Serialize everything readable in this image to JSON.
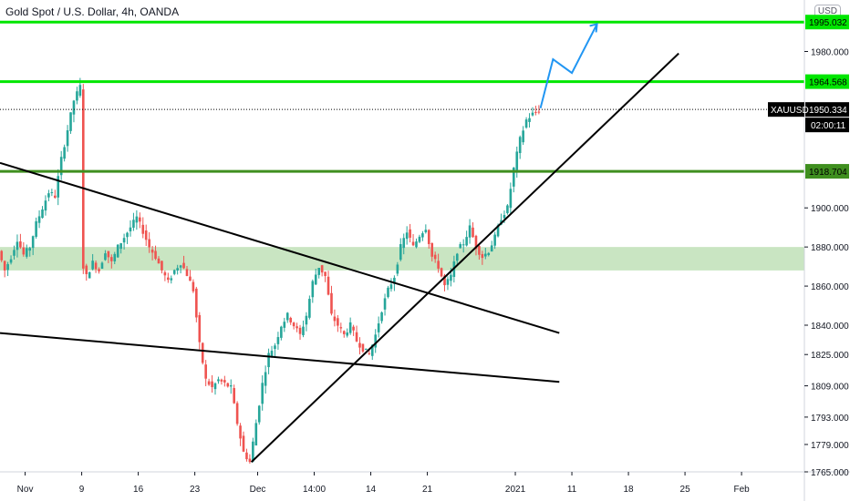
{
  "chart_data": {
    "type": "candlestick",
    "title": "Gold Spot / U.S. Dollar, 4h, OANDA",
    "currency": "USD",
    "symbol": "XAUUSD",
    "last_price": "1950.334",
    "countdown": "02:00:11",
    "y_ticks": [
      "1995.032",
      "1980.000",
      "1964.568",
      "1950.334",
      "1918.704",
      "1900.000",
      "1880.000",
      "1860.000",
      "1840.000",
      "1825.000",
      "1809.000",
      "1793.000",
      "1779.000",
      "1765.000"
    ],
    "y_tick_values": [
      1995.032,
      1980,
      1964.568,
      1950.334,
      1918.704,
      1900,
      1880,
      1860,
      1840,
      1825,
      1809,
      1793,
      1779,
      1765
    ],
    "x_ticks": [
      "Nov",
      "9",
      "16",
      "23",
      "Dec",
      "14:00",
      "14",
      "21",
      "2021",
      "11",
      "18",
      "25",
      "Feb"
    ],
    "x_tick_bars": [
      4,
      13,
      22,
      31,
      41,
      50,
      59,
      68,
      82,
      91,
      100,
      109,
      118
    ],
    "x_range_bars": [
      0,
      128
    ],
    "ylim": [
      1765,
      1997
    ],
    "price_path": [
      [
        0,
        1878
      ],
      [
        1,
        1868
      ],
      [
        2,
        1875
      ],
      [
        3,
        1884
      ],
      [
        4,
        1876
      ],
      [
        5,
        1880
      ],
      [
        6,
        1892
      ],
      [
        7,
        1900
      ],
      [
        8,
        1908
      ],
      [
        9,
        1906
      ],
      [
        10,
        1925
      ],
      [
        11,
        1940
      ],
      [
        12,
        1955
      ],
      [
        13,
        1962
      ],
      [
        13.5,
        1870
      ],
      [
        14,
        1865
      ],
      [
        15,
        1872
      ],
      [
        16,
        1868
      ],
      [
        17,
        1878
      ],
      [
        18,
        1872
      ],
      [
        19,
        1880
      ],
      [
        20,
        1885
      ],
      [
        21,
        1890
      ],
      [
        22,
        1895
      ],
      [
        23,
        1888
      ],
      [
        24,
        1880
      ],
      [
        25,
        1875
      ],
      [
        26,
        1868
      ],
      [
        27,
        1862
      ],
      [
        28,
        1868
      ],
      [
        29,
        1872
      ],
      [
        30,
        1866
      ],
      [
        31,
        1858
      ],
      [
        32,
        1830
      ],
      [
        33,
        1812
      ],
      [
        34,
        1808
      ],
      [
        35,
        1812
      ],
      [
        36,
        1810
      ],
      [
        37,
        1808
      ],
      [
        38,
        1790
      ],
      [
        39,
        1775
      ],
      [
        40,
        1770
      ],
      [
        41,
        1790
      ],
      [
        42,
        1810
      ],
      [
        43,
        1825
      ],
      [
        44,
        1830
      ],
      [
        45,
        1840
      ],
      [
        46,
        1845
      ],
      [
        47,
        1840
      ],
      [
        48,
        1835
      ],
      [
        49,
        1845
      ],
      [
        50,
        1862
      ],
      [
        51,
        1870
      ],
      [
        52,
        1865
      ],
      [
        53,
        1845
      ],
      [
        54,
        1840
      ],
      [
        55,
        1835
      ],
      [
        56,
        1840
      ],
      [
        57,
        1832
      ],
      [
        58,
        1828
      ],
      [
        59,
        1825
      ],
      [
        60,
        1835
      ],
      [
        61,
        1848
      ],
      [
        62,
        1858
      ],
      [
        63,
        1865
      ],
      [
        64,
        1880
      ],
      [
        65,
        1888
      ],
      [
        66,
        1880
      ],
      [
        67,
        1886
      ],
      [
        68,
        1890
      ],
      [
        69,
        1875
      ],
      [
        70,
        1870
      ],
      [
        71,
        1860
      ],
      [
        72,
        1865
      ],
      [
        73,
        1878
      ],
      [
        74,
        1882
      ],
      [
        75,
        1890
      ],
      [
        76,
        1880
      ],
      [
        77,
        1875
      ],
      [
        78,
        1878
      ],
      [
        79,
        1885
      ],
      [
        80,
        1895
      ],
      [
        81,
        1900
      ],
      [
        82,
        1920
      ],
      [
        83,
        1935
      ],
      [
        84,
        1945
      ],
      [
        85,
        1948
      ],
      [
        86,
        1950
      ]
    ],
    "support_zone": [
      1868,
      1880
    ],
    "horizontal_levels": [
      {
        "value": 1995.032,
        "label": "1995.032",
        "color": "#00e600"
      },
      {
        "value": 1964.568,
        "label": "1964.568",
        "color": "#00e600"
      },
      {
        "value": 1918.704,
        "label": "1918.704",
        "color": "#3f8f1f"
      }
    ],
    "trend_lines": [
      {
        "from": [
          0,
          1923
        ],
        "to": [
          89,
          1836
        ]
      },
      {
        "from": [
          0,
          1836
        ],
        "to": [
          89,
          1811
        ]
      },
      {
        "from": [
          40,
          1770
        ],
        "to": [
          108,
          1979
        ]
      }
    ],
    "projection": [
      [
        86,
        1951
      ],
      [
        88,
        1976
      ],
      [
        91,
        1969
      ],
      [
        95,
        1994
      ]
    ],
    "colors": {
      "up": "#26a69a",
      "down": "#ef5350",
      "level_bright": "#00e600",
      "level_dark": "#3f8f1f",
      "zone": "#b7dcae",
      "projection": "#2196f3"
    }
  }
}
